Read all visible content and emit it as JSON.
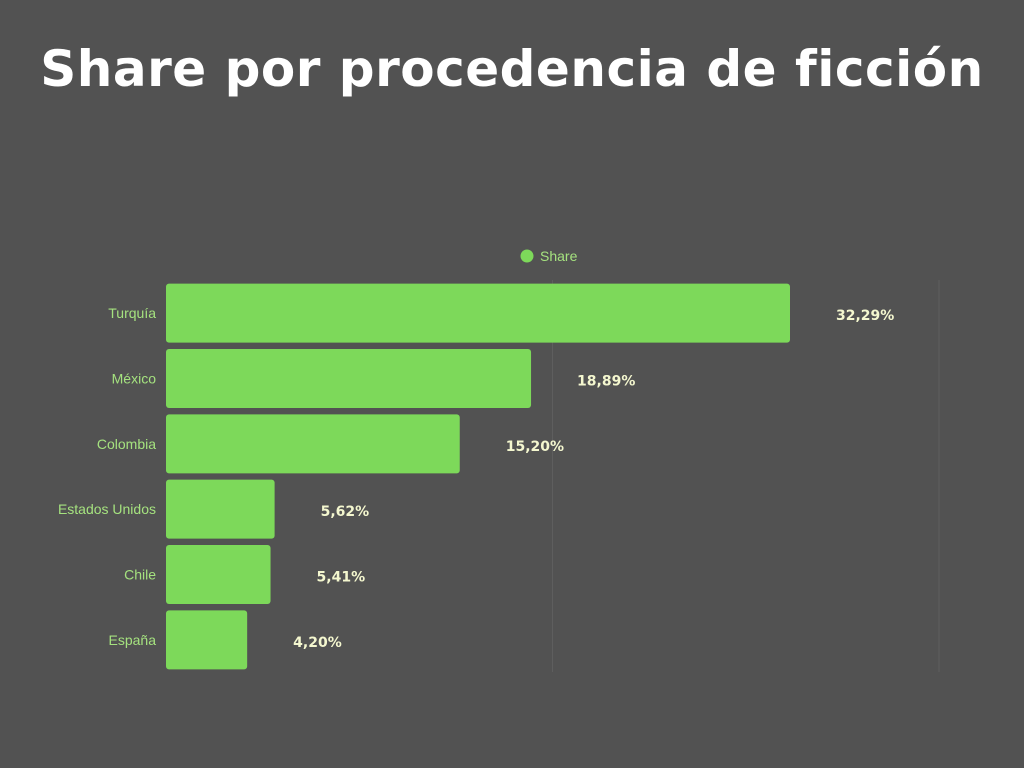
{
  "title": "Share por procedencia de ficción",
  "colors": {
    "background": "#525252",
    "bar": "#7dd95a",
    "category_label": "#a5e27f",
    "value_label": "#f4f7cf",
    "legend_text": "#a5e27f",
    "title": "#ffffff",
    "grid": "#5e5e5e"
  },
  "chart_data": {
    "type": "bar",
    "orientation": "horizontal",
    "categories": [
      "Turquía",
      "México",
      "Colombia",
      "Estados Unidos",
      "Chile",
      "España"
    ],
    "series": [
      {
        "name": "Share",
        "values": [
          32.29,
          18.89,
          15.2,
          5.62,
          5.41,
          4.2
        ]
      }
    ],
    "value_labels": [
      "32,29%",
      "18,89%",
      "15,20%",
      "5,62%",
      "5,41%",
      "4,20%"
    ],
    "xlim": [
      0,
      40
    ],
    "grid": true,
    "legend_position": "top-center"
  }
}
